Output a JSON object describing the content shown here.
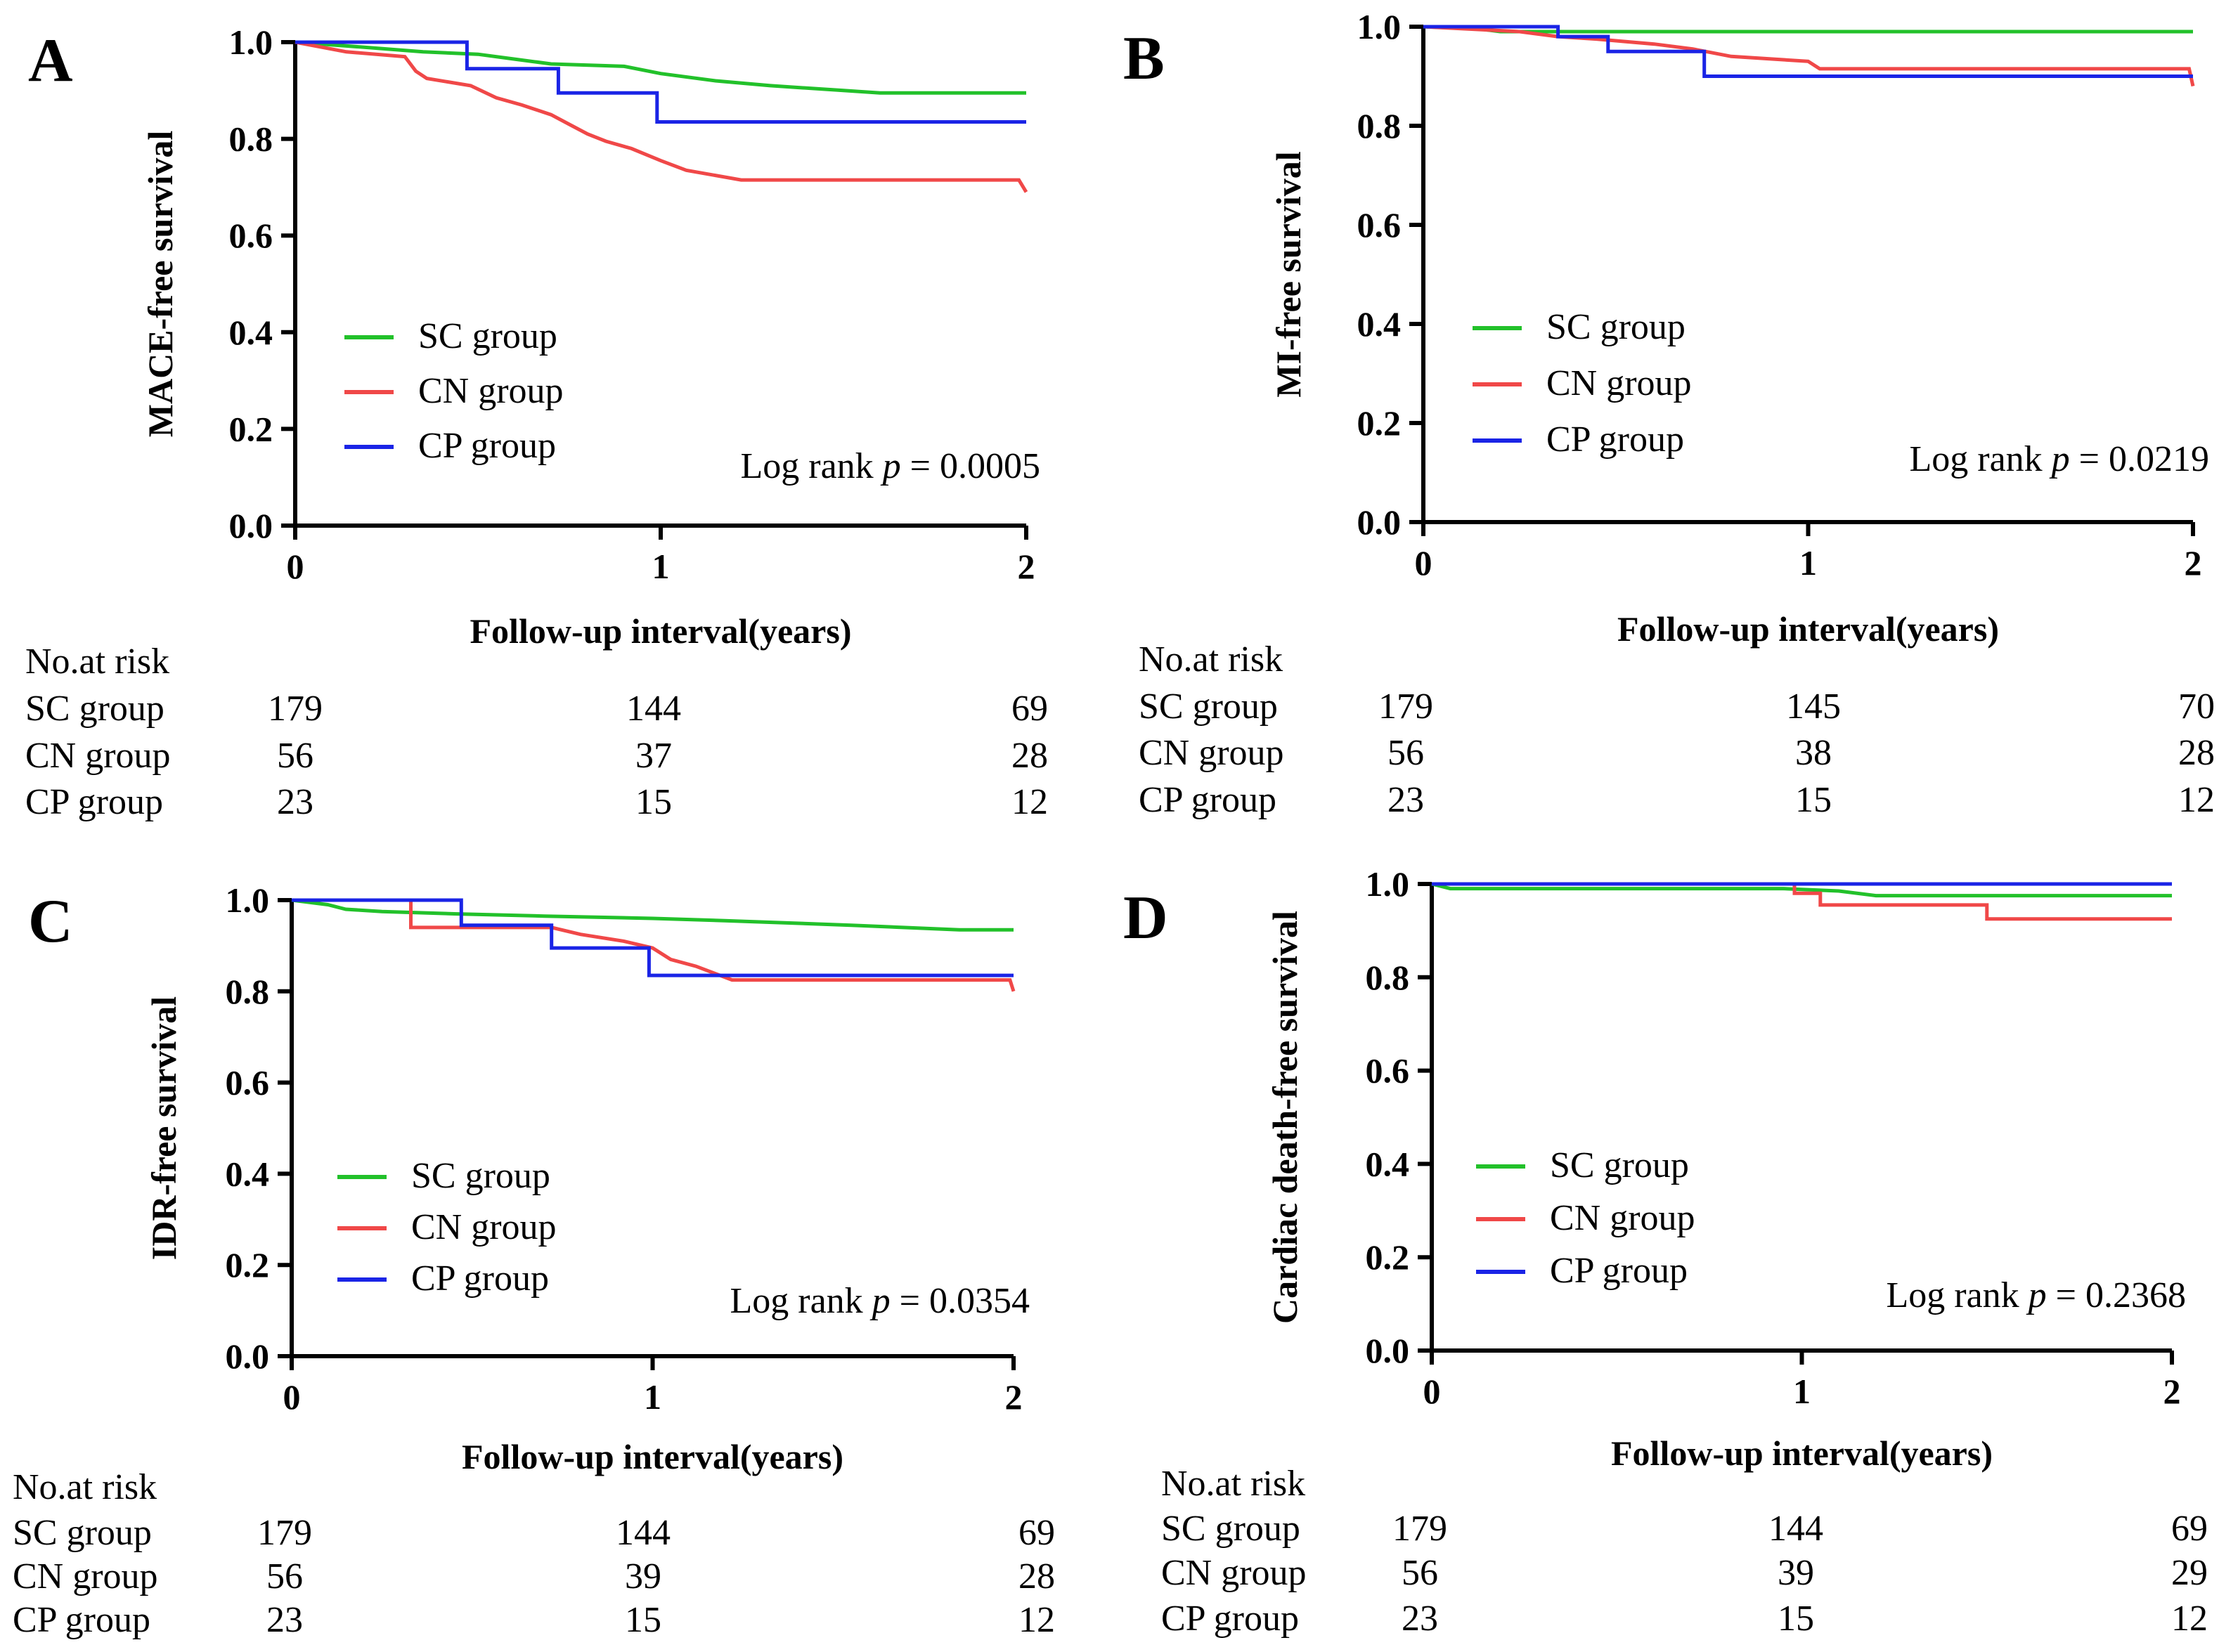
{
  "colors": {
    "sc": "#22c12a",
    "cn": "#f04848",
    "cp": "#1a24e6",
    "axis": "#000000"
  },
  "chart_data": [
    {
      "type": "line",
      "panel": "A",
      "ylabel": "MACE-free survival",
      "xlabel": "Follow-up interval(years)",
      "xlim": [
        0,
        2
      ],
      "ylim": [
        0,
        1
      ],
      "xticks": [
        "0",
        "1",
        "2"
      ],
      "yticks": [
        "0.0",
        "0.2",
        "0.4",
        "0.6",
        "0.8",
        "1.0"
      ],
      "legend": [
        "SC group",
        "CN group",
        "CP group"
      ],
      "logrank_prefix": "Log rank ",
      "logrank_p": "p",
      "logrank_value": " = 0.0005",
      "series": [
        {
          "name": "SC group",
          "key": "sc",
          "points": [
            [
              0,
              1.0
            ],
            [
              0.18,
              0.99
            ],
            [
              0.35,
              0.98
            ],
            [
              0.5,
              0.975
            ],
            [
              0.6,
              0.965
            ],
            [
              0.7,
              0.955
            ],
            [
              0.9,
              0.95
            ],
            [
              1.0,
              0.935
            ],
            [
              1.15,
              0.92
            ],
            [
              1.3,
              0.91
            ],
            [
              1.5,
              0.9
            ],
            [
              1.6,
              0.895
            ],
            [
              2.0,
              0.895
            ]
          ]
        },
        {
          "name": "CN group",
          "key": "cn",
          "points": [
            [
              0,
              1.0
            ],
            [
              0.14,
              0.98
            ],
            [
              0.3,
              0.97
            ],
            [
              0.33,
              0.94
            ],
            [
              0.36,
              0.925
            ],
            [
              0.48,
              0.91
            ],
            [
              0.55,
              0.885
            ],
            [
              0.62,
              0.87
            ],
            [
              0.7,
              0.85
            ],
            [
              0.75,
              0.83
            ],
            [
              0.8,
              0.81
            ],
            [
              0.85,
              0.795
            ],
            [
              0.92,
              0.78
            ],
            [
              1.0,
              0.755
            ],
            [
              1.07,
              0.735
            ],
            [
              1.22,
              0.715
            ],
            [
              1.98,
              0.715
            ],
            [
              2.0,
              0.69
            ]
          ]
        },
        {
          "name": "CP group",
          "key": "cp",
          "points": [
            [
              0,
              1.0
            ],
            [
              0.47,
              1.0
            ],
            [
              0.47,
              0.945
            ],
            [
              0.72,
              0.945
            ],
            [
              0.72,
              0.895
            ],
            [
              0.99,
              0.895
            ],
            [
              0.99,
              0.835
            ],
            [
              2.0,
              0.835
            ]
          ]
        }
      ],
      "risk_header": "No.at risk",
      "risk_table": [
        {
          "group": "SC group",
          "values": [
            "179",
            "144",
            "69"
          ]
        },
        {
          "group": "CN group",
          "values": [
            "56",
            "37",
            "28"
          ]
        },
        {
          "group": "CP group",
          "values": [
            "23",
            "15",
            "12"
          ]
        }
      ]
    },
    {
      "type": "line",
      "panel": "B",
      "ylabel": "MI-free survival",
      "xlabel": "Follow-up interval(years)",
      "xlim": [
        0,
        2
      ],
      "ylim": [
        0,
        1
      ],
      "xticks": [
        "0",
        "1",
        "2"
      ],
      "yticks": [
        "0.0",
        "0.2",
        "0.4",
        "0.6",
        "0.8",
        "1.0"
      ],
      "legend": [
        "SC group",
        "CN group",
        "CP group"
      ],
      "logrank_prefix": "Log rank ",
      "logrank_p": "p",
      "logrank_value": " = 0.0219",
      "series": [
        {
          "name": "SC group",
          "key": "sc",
          "points": [
            [
              0,
              1.0
            ],
            [
              0.15,
              0.995
            ],
            [
              0.2,
              0.99
            ],
            [
              0.4,
              0.99
            ],
            [
              2.0,
              0.99
            ]
          ]
        },
        {
          "name": "CN group",
          "key": "cn",
          "points": [
            [
              0,
              1.0
            ],
            [
              0.25,
              0.99
            ],
            [
              0.35,
              0.98
            ],
            [
              0.45,
              0.975
            ],
            [
              0.6,
              0.965
            ],
            [
              0.7,
              0.955
            ],
            [
              0.8,
              0.94
            ],
            [
              1.0,
              0.93
            ],
            [
              1.03,
              0.915
            ],
            [
              1.99,
              0.915
            ],
            [
              2.0,
              0.88
            ]
          ]
        },
        {
          "name": "CP group",
          "key": "cp",
          "points": [
            [
              0,
              1.0
            ],
            [
              0.35,
              1.0
            ],
            [
              0.35,
              0.98
            ],
            [
              0.48,
              0.98
            ],
            [
              0.48,
              0.95
            ],
            [
              0.73,
              0.95
            ],
            [
              0.73,
              0.9
            ],
            [
              2.0,
              0.9
            ]
          ]
        }
      ],
      "risk_header": "No.at risk",
      "risk_table": [
        {
          "group": "SC group",
          "values": [
            "179",
            "145",
            "70"
          ]
        },
        {
          "group": "CN group",
          "values": [
            "56",
            "38",
            "28"
          ]
        },
        {
          "group": "CP group",
          "values": [
            "23",
            "15",
            "12"
          ]
        }
      ]
    },
    {
      "type": "line",
      "panel": "C",
      "ylabel": "IDR-free survival",
      "xlabel": "Follow-up interval(years)",
      "xlim": [
        0,
        2
      ],
      "ylim": [
        0,
        1
      ],
      "xticks": [
        "0",
        "1",
        "2"
      ],
      "yticks": [
        "0.0",
        "0.2",
        "0.4",
        "0.6",
        "0.8",
        "1.0"
      ],
      "legend": [
        "SC group",
        "CN group",
        "CP group"
      ],
      "logrank_prefix": "Log rank ",
      "logrank_p": "p",
      "logrank_value": " = 0.0354",
      "series": [
        {
          "name": "SC group",
          "key": "sc",
          "points": [
            [
              0,
              1.0
            ],
            [
              0.1,
              0.99
            ],
            [
              0.15,
              0.98
            ],
            [
              0.25,
              0.975
            ],
            [
              0.45,
              0.97
            ],
            [
              0.7,
              0.965
            ],
            [
              1.0,
              0.96
            ],
            [
              1.2,
              0.955
            ],
            [
              1.55,
              0.945
            ],
            [
              1.85,
              0.935
            ],
            [
              2.0,
              0.935
            ]
          ]
        },
        {
          "name": "CN group",
          "key": "cn",
          "points": [
            [
              0,
              1.0
            ],
            [
              0.33,
              1.0
            ],
            [
              0.33,
              0.94
            ],
            [
              0.72,
              0.94
            ],
            [
              0.8,
              0.925
            ],
            [
              0.92,
              0.91
            ],
            [
              1.0,
              0.895
            ],
            [
              1.05,
              0.87
            ],
            [
              1.12,
              0.855
            ],
            [
              1.22,
              0.825
            ],
            [
              1.99,
              0.825
            ],
            [
              2.0,
              0.8
            ]
          ]
        },
        {
          "name": "CP group",
          "key": "cp",
          "points": [
            [
              0,
              1.0
            ],
            [
              0.47,
              1.0
            ],
            [
              0.47,
              0.945
            ],
            [
              0.72,
              0.945
            ],
            [
              0.72,
              0.895
            ],
            [
              0.99,
              0.895
            ],
            [
              0.99,
              0.835
            ],
            [
              2.0,
              0.835
            ]
          ]
        }
      ],
      "risk_header": "No.at risk",
      "risk_table": [
        {
          "group": "SC group",
          "values": [
            "179",
            "144",
            "69"
          ]
        },
        {
          "group": "CN group",
          "values": [
            "56",
            "39",
            "28"
          ]
        },
        {
          "group": "CP group",
          "values": [
            "23",
            "15",
            "12"
          ]
        }
      ]
    },
    {
      "type": "line",
      "panel": "D",
      "ylabel": "Cardiac death-free survival",
      "xlabel": "Follow-up interval(years)",
      "xlim": [
        0,
        2
      ],
      "ylim": [
        0,
        1
      ],
      "xticks": [
        "0",
        "1",
        "2"
      ],
      "yticks": [
        "0.0",
        "0.2",
        "0.4",
        "0.6",
        "0.8",
        "1.0"
      ],
      "legend": [
        "SC group",
        "CN group",
        "CP group"
      ],
      "logrank_prefix": "Log rank ",
      "logrank_p": "p",
      "logrank_value": " = 0.2368",
      "series": [
        {
          "name": "SC group",
          "key": "sc",
          "points": [
            [
              0,
              1.0
            ],
            [
              0.05,
              0.99
            ],
            [
              0.95,
              0.99
            ],
            [
              1.1,
              0.985
            ],
            [
              1.2,
              0.975
            ],
            [
              2.0,
              0.975
            ]
          ]
        },
        {
          "name": "CN group",
          "key": "cn",
          "points": [
            [
              0,
              1.0
            ],
            [
              0.98,
              1.0
            ],
            [
              0.98,
              0.98
            ],
            [
              1.05,
              0.98
            ],
            [
              1.05,
              0.955
            ],
            [
              1.5,
              0.955
            ],
            [
              1.5,
              0.925
            ],
            [
              2.0,
              0.925
            ]
          ]
        },
        {
          "name": "CP group",
          "key": "cp",
          "points": [
            [
              0,
              1.0
            ],
            [
              2.0,
              1.0
            ]
          ]
        }
      ],
      "risk_header": "No.at risk",
      "risk_table": [
        {
          "group": "SC group",
          "values": [
            "179",
            "144",
            "69"
          ]
        },
        {
          "group": "CN group",
          "values": [
            "56",
            "39",
            "29"
          ]
        },
        {
          "group": "CP group",
          "values": [
            "23",
            "15",
            "12"
          ]
        }
      ]
    }
  ]
}
